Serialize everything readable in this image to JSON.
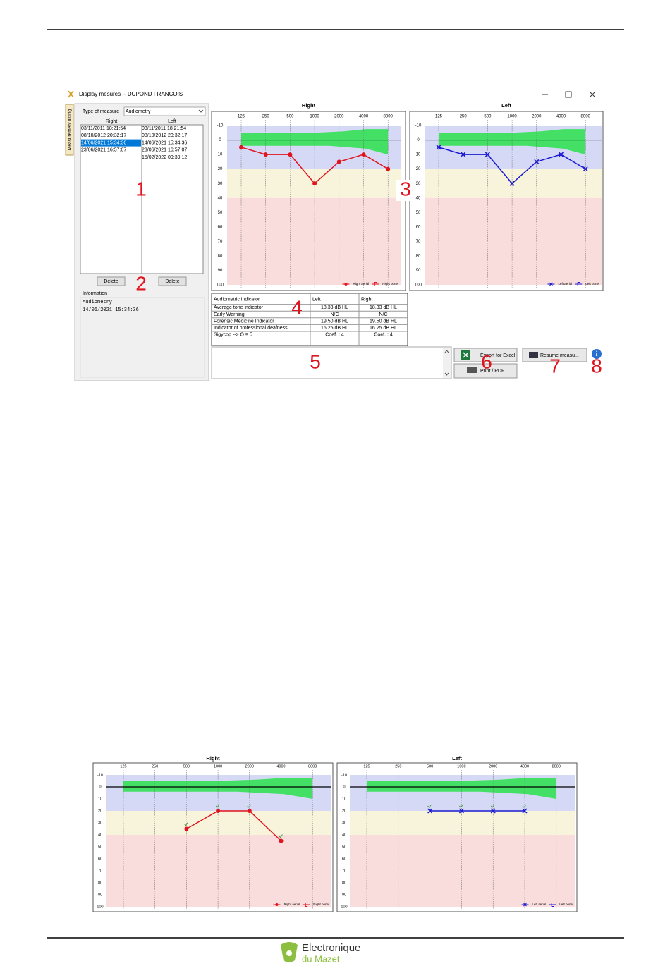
{
  "window": {
    "title": "Display mesures -- DUPOND FRANCOIS",
    "tab": "Measurement listing",
    "type_label": "Type of measure",
    "type_value": "Audiometry",
    "lists": [
      {
        "header": "Right",
        "items": [
          "03/11/2011 18:21:54",
          "08/10/2012 20:32:17",
          "14/06/2021 15:34:36",
          "23/06/2021 16:57:07"
        ],
        "selected_index": 2,
        "button": "Delete"
      },
      {
        "header": "Left",
        "items": [
          "03/11/2011 18:21:54",
          "08/10/2012 20:32:17",
          "14/06/2021 15:34:36",
          "23/06/2021 16:57:07",
          "15/02/2022 09:39:12"
        ],
        "button": "Delete"
      }
    ],
    "information": {
      "label": "Information",
      "lines": [
        "Audiometry",
        "14/06/2021 15:34:36"
      ]
    },
    "table": {
      "header": [
        "Audiometric indicator",
        "Left",
        "Right"
      ],
      "rows": [
        [
          "Average tone indicator",
          "18.33 dB HL",
          "18.33 dB HL"
        ],
        [
          "Early Warning",
          "N/C",
          "N/C"
        ],
        [
          "Forensic Medicine Indicator",
          "19.50 dB HL",
          "19.50 dB HL"
        ],
        [
          "Indicator of professional deafness",
          "16.25 dB HL",
          "16.25 dB HL"
        ],
        [
          "Sigycop --> O = 5",
          "Coef. : 4",
          "Coef. : 4"
        ]
      ]
    },
    "buttons": {
      "excel": "Export for Excel",
      "print": "Print / PDF",
      "resume": "Resume measu..."
    },
    "callouts": [
      "1",
      "2",
      "3",
      "4",
      "5",
      "6",
      "7",
      "8"
    ]
  },
  "audiograms": [
    {
      "title": "Right",
      "xscale": "log",
      "xticks": [
        125,
        250,
        500,
        1000,
        2000,
        4000,
        8000
      ],
      "ylim": [
        -10,
        100
      ],
      "yreversed": true,
      "yticks": [
        -10,
        0,
        10,
        20,
        30,
        40,
        50,
        60,
        70,
        80,
        90,
        100
      ],
      "zones": [
        {
          "from": -10,
          "to": 20,
          "color": "#d6d9f5"
        },
        {
          "from": 20,
          "to": 40,
          "color": "#f8f4dc"
        },
        {
          "from": 40,
          "to": 100,
          "color": "#f9dcdc"
        }
      ],
      "series": [
        {
          "name": "Right aerial",
          "color": "#e0141e",
          "marker": "circle",
          "x": [
            125,
            250,
            500,
            1000,
            2000,
            4000,
            8000
          ],
          "values": [
            5,
            10,
            10,
            30,
            15,
            10,
            20
          ]
        },
        {
          "name": "Right bone",
          "color": "#e0141e",
          "marker": "bracket"
        }
      ]
    },
    {
      "title": "Left",
      "xscale": "log",
      "xticks": [
        125,
        250,
        500,
        1000,
        2000,
        4000,
        8000
      ],
      "ylim": [
        -10,
        100
      ],
      "yreversed": true,
      "yticks": [
        -10,
        0,
        10,
        20,
        30,
        40,
        50,
        60,
        70,
        80,
        90,
        100
      ],
      "zones": [
        {
          "from": -10,
          "to": 20,
          "color": "#d6d9f5"
        },
        {
          "from": 20,
          "to": 40,
          "color": "#f8f4dc"
        },
        {
          "from": 40,
          "to": 100,
          "color": "#f9dcdc"
        }
      ],
      "series": [
        {
          "name": "Left aerial",
          "color": "#1a1ad0",
          "marker": "cross",
          "x": [
            125,
            250,
            500,
            1000,
            2000,
            4000,
            8000
          ],
          "values": [
            5,
            10,
            10,
            30,
            15,
            10,
            20
          ]
        },
        {
          "name": "Left bone",
          "color": "#1a1ad0",
          "marker": "bracket"
        }
      ]
    },
    {
      "title": "Right",
      "xscale": "log",
      "xticks": [
        125,
        250,
        500,
        1000,
        2000,
        4000,
        8000
      ],
      "ylim": [
        -10,
        100
      ],
      "yreversed": true,
      "yticks": [
        -10,
        0,
        10,
        20,
        30,
        40,
        50,
        60,
        70,
        80,
        90,
        100
      ],
      "zones": [
        {
          "from": -10,
          "to": 20,
          "color": "#d6d9f5"
        },
        {
          "from": 20,
          "to": 40,
          "color": "#f8f4dc"
        },
        {
          "from": 40,
          "to": 100,
          "color": "#f9dcdc"
        }
      ],
      "series": [
        {
          "name": "Right aerial",
          "color": "#e0141e",
          "marker": "circle",
          "x": [
            500,
            1000,
            2000,
            4000
          ],
          "values": [
            35,
            20,
            20,
            45
          ]
        },
        {
          "name": "Right bone",
          "color": "#e0141e",
          "marker": "bracket"
        }
      ]
    },
    {
      "title": "Left",
      "xscale": "log",
      "xticks": [
        125,
        250,
        500,
        1000,
        2000,
        4000,
        8000
      ],
      "ylim": [
        -10,
        100
      ],
      "yreversed": true,
      "yticks": [
        -10,
        0,
        10,
        20,
        30,
        40,
        50,
        60,
        70,
        80,
        90,
        100
      ],
      "zones": [
        {
          "from": -10,
          "to": 20,
          "color": "#d6d9f5"
        },
        {
          "from": 20,
          "to": 40,
          "color": "#f8f4dc"
        },
        {
          "from": 40,
          "to": 100,
          "color": "#f9dcdc"
        }
      ],
      "series": [
        {
          "name": "Left aerial",
          "color": "#1a1ad0",
          "marker": "cross",
          "x": [
            500,
            1000,
            2000,
            4000
          ],
          "values": [
            20,
            20,
            20,
            20
          ]
        },
        {
          "name": "Left bone",
          "color": "#1a1ad0",
          "marker": "bracket"
        }
      ]
    }
  ],
  "footer": {
    "brand": "Electronique",
    "brand2": "du Mazet"
  }
}
